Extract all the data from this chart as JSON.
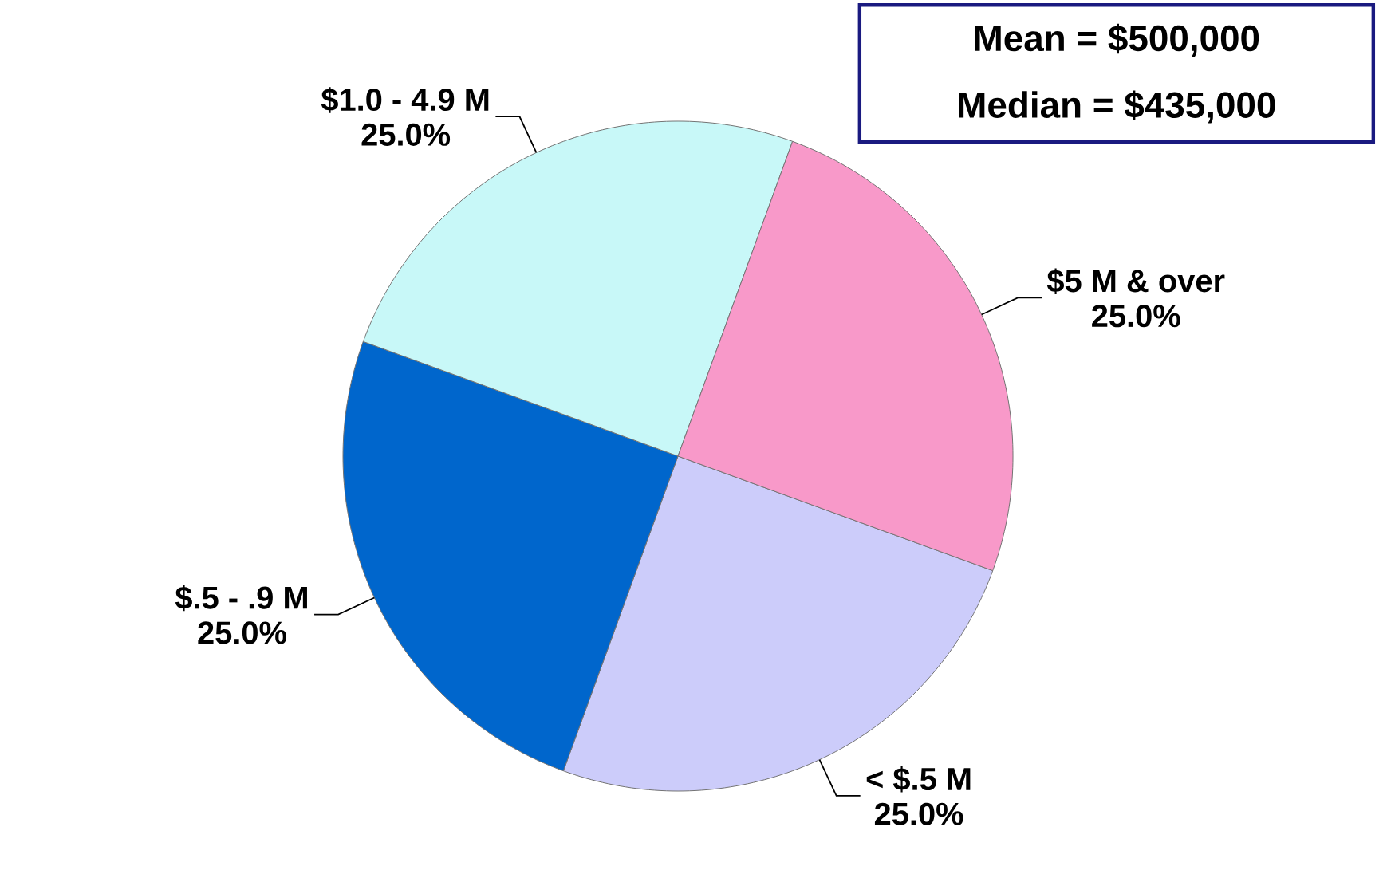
{
  "chart_data": {
    "type": "pie",
    "categories": [
      "< $.5 M",
      "$.5 - .9 M",
      "$1.0 - 4.9 M",
      "$5 M & over"
    ],
    "values": [
      25,
      25,
      25,
      25
    ],
    "value_labels": [
      "25.0%",
      "25.0%",
      "25.0%",
      "25.0%"
    ],
    "colors": [
      "#ccccfa",
      "#0066cc",
      "#c8f8f8",
      "#f899c9"
    ],
    "annotations": [
      "Mean = $500,000",
      "Median = $435,000"
    ]
  }
}
